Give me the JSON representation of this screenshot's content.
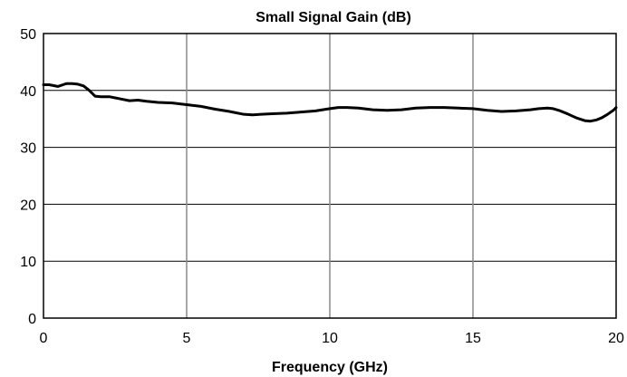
{
  "chart_data": {
    "type": "line",
    "title": "Small Signal Gain (dB)",
    "xlabel": "Frequency (GHz)",
    "ylabel": "",
    "xlim": [
      0,
      20
    ],
    "ylim": [
      0,
      50
    ],
    "xticks": [
      0,
      5,
      10,
      15,
      20
    ],
    "yticks": [
      0,
      10,
      20,
      30,
      40,
      50
    ],
    "grid": true,
    "legend": "none",
    "series": [
      {
        "color": "#000000",
        "x": [
          0,
          0.2,
          0.5,
          0.8,
          1.0,
          1.2,
          1.4,
          1.6,
          1.8,
          2.0,
          2.3,
          2.6,
          3.0,
          3.3,
          3.6,
          4.0,
          4.5,
          5.0,
          5.5,
          6.0,
          6.5,
          7.0,
          7.3,
          7.6,
          8.0,
          8.5,
          9.0,
          9.5,
          10.0,
          10.3,
          10.6,
          11.0,
          11.5,
          12.0,
          12.5,
          13.0,
          13.5,
          14.0,
          14.5,
          15.0,
          15.5,
          16.0,
          16.5,
          17.0,
          17.3,
          17.6,
          17.8,
          18.0,
          18.3,
          18.6,
          18.9,
          19.1,
          19.3,
          19.5,
          19.7,
          19.9,
          20.0
        ],
        "y": [
          41.0,
          41.0,
          40.7,
          41.2,
          41.2,
          41.1,
          40.8,
          40.0,
          39.0,
          38.9,
          38.9,
          38.6,
          38.2,
          38.3,
          38.1,
          37.9,
          37.8,
          37.5,
          37.2,
          36.7,
          36.3,
          35.8,
          35.7,
          35.8,
          35.9,
          36.0,
          36.2,
          36.4,
          36.8,
          37.0,
          37.0,
          36.9,
          36.6,
          36.5,
          36.6,
          36.9,
          37.0,
          37.0,
          36.9,
          36.8,
          36.5,
          36.3,
          36.4,
          36.6,
          36.8,
          36.9,
          36.8,
          36.5,
          35.9,
          35.2,
          34.7,
          34.6,
          34.8,
          35.2,
          35.8,
          36.5,
          37.0
        ]
      }
    ]
  }
}
